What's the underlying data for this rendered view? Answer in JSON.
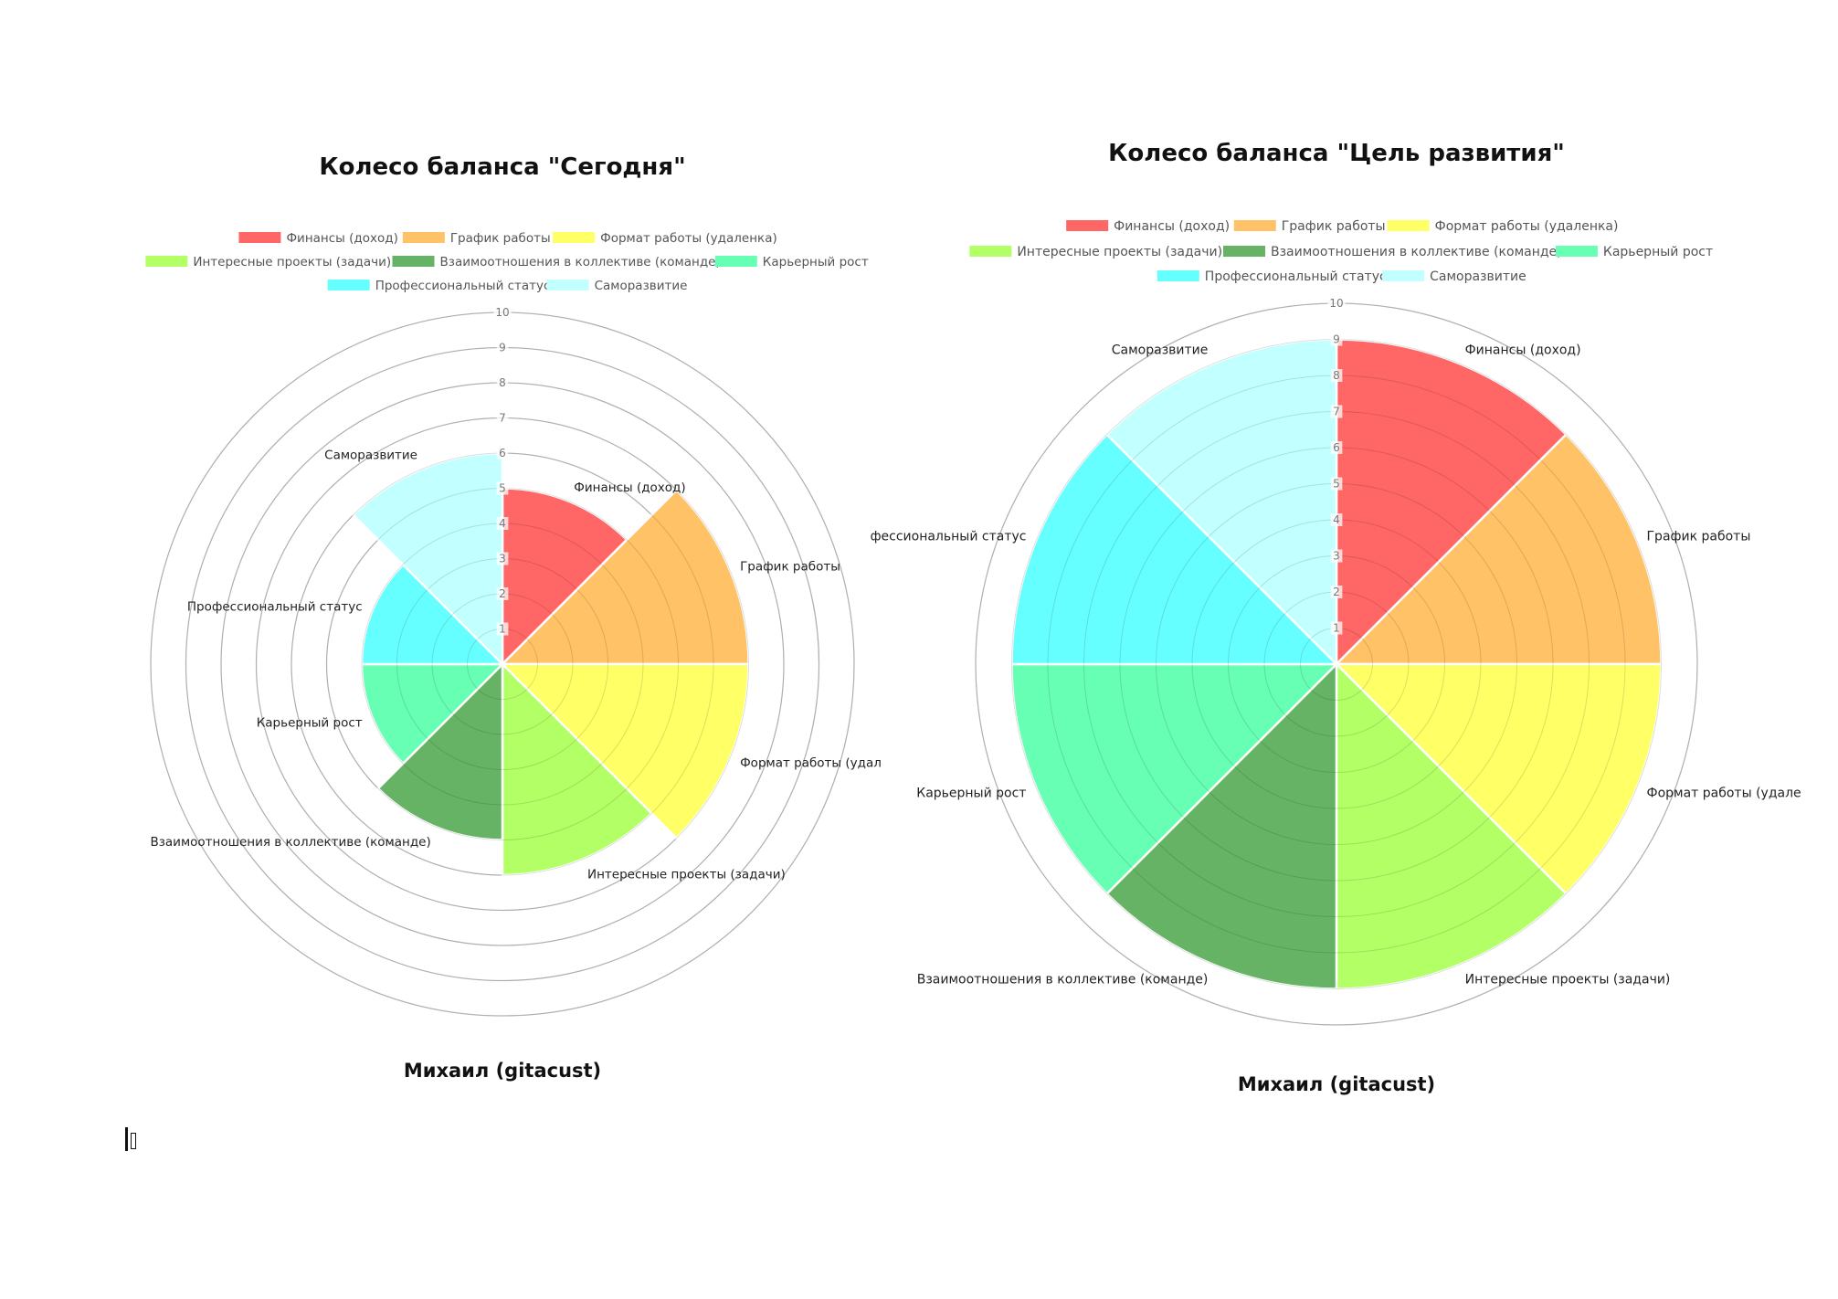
{
  "chart_data": [
    {
      "type": "polarArea",
      "title": "Колесо баланса \"Сегодня\"",
      "footer": "Михаил (gitacust)",
      "r_range": [
        0,
        10
      ],
      "grid": true,
      "legend_position": "top",
      "categories": [
        "Финансы (доход)",
        "График работы",
        "Формат работы (удаленка)",
        "Интересные проекты (задачи)",
        "Взаимоотношения в коллективе (команде)",
        "Карьерный рост",
        "Профессиональный статус",
        "Саморазвитие"
      ],
      "point_labels": [
        "Финансы (доход)",
        "График работы",
        "Формат работы (удал",
        "Интересные проекты (задачи)",
        "Взаимоотношения в коллективе (команде)",
        "Карьерный рост",
        "Профессиональный статус",
        "Саморазвитие"
      ],
      "legend_labels": [
        "Финансы (доход)",
        "График работы",
        "Формат работы (удаленка)",
        "Интересные проекты (задачи)",
        "Взаимоотношения в коллективе (команде)",
        "Карьерный рост",
        "Профессиональный статус",
        "Саморазвитие"
      ],
      "values": [
        5,
        7,
        7,
        6,
        5,
        4,
        4,
        6
      ],
      "ticks": [
        "1",
        "2",
        "3",
        "4",
        "5",
        "6",
        "7",
        "8",
        "9",
        "10"
      ]
    },
    {
      "type": "polarArea",
      "title": "Колесо баланса \"Цель развития\"",
      "footer": "Михаил (gitacust)",
      "r_range": [
        0,
        10
      ],
      "grid": true,
      "legend_position": "top",
      "categories": [
        "Финансы (доход)",
        "График работы",
        "Формат работы (удаленка)",
        "Интересные проекты (задачи)",
        "Взаимоотношения в коллективе (команде)",
        "Карьерный рост",
        "Профессиональный статус",
        "Саморазвитие"
      ],
      "point_labels": [
        "Финансы (доход)",
        "График работы",
        "Формат работы (удале",
        "Интересные проекты (задачи)",
        "Взаимоотношения в коллективе (команде)",
        "Карьерный рост",
        "фессиональный статус",
        "Саморазвитие"
      ],
      "legend_labels": [
        "Финансы (доход)",
        "График работы",
        "Формат работы (удаленка)",
        "Интересные проекты (задачи)",
        "Взаимоотношения в коллективе (команде)",
        "Карьерный рост",
        "Профессиональный статус",
        "Саморазвитие"
      ],
      "values": [
        9,
        9,
        9,
        9,
        9,
        9,
        9,
        9
      ],
      "ticks": [
        "1",
        "2",
        "3",
        "4",
        "5",
        "6",
        "7",
        "8",
        "9",
        "10"
      ]
    }
  ],
  "colors": [
    "#ff6666",
    "#ffc266",
    "#ffff66",
    "#b3ff66",
    "#66b366",
    "#66ffb3",
    "#66ffff",
    "#c2ffff"
  ],
  "colors_legend": [
    "#ff6666",
    "#ffc266",
    "#ffff66",
    "#b3ff66",
    "#66b366",
    "#66ffb3",
    "#66ffff",
    "#c2ffff"
  ]
}
